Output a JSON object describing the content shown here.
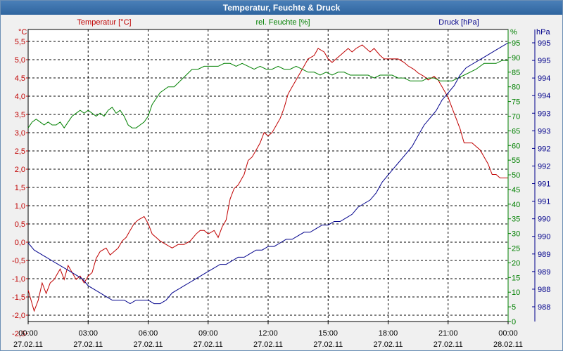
{
  "window": {
    "title": "Temperatur, Feuchte & Druck"
  },
  "colors": {
    "temp": "#c00000",
    "hum": "#008000",
    "press": "#00008b",
    "grid": "#000000"
  },
  "chart_data": {
    "type": "line",
    "title": "Temperatur, Feuchte & Druck",
    "legend": {
      "temp": "Temperatur [°C]",
      "hum": "rel. Feuchte [%]",
      "press": "Druck [hPa]"
    },
    "axes": {
      "temp": {
        "unit": "°C",
        "ylim": [
          -2.5,
          5.5
        ],
        "ticks": [
          "5,5",
          "5,0",
          "4,5",
          "4,0",
          "3,5",
          "3,0",
          "2,5",
          "2,0",
          "1,5",
          "1,0",
          "0,5",
          "0,0",
          "-0,5",
          "-1,0",
          "-1,5",
          "-2,0",
          "-2,5"
        ]
      },
      "hum": {
        "unit": "%",
        "ylim": [
          0,
          95
        ],
        "ticks": [
          "95",
          "90",
          "85",
          "80",
          "75",
          "70",
          "65",
          "60",
          "55",
          "50",
          "45",
          "40",
          "35",
          "30",
          "25",
          "20",
          "15",
          "10",
          "5",
          "0"
        ]
      },
      "press": {
        "unit": "hPa",
        "ylim": [
          987.4,
          995.2
        ],
        "ticks": [
          "995",
          "995",
          "994",
          "994",
          "993",
          "993",
          "992",
          "992",
          "991",
          "991",
          "990",
          "990",
          "989",
          "989",
          "988",
          "988"
        ]
      }
    },
    "x": {
      "range_hours": [
        0,
        24
      ],
      "times": [
        "00:00",
        "03:00",
        "06:00",
        "09:00",
        "12:00",
        "15:00",
        "18:00",
        "21:00",
        "00:00"
      ],
      "dates": [
        "27.02.11",
        "27.02.11",
        "27.02.11",
        "27.02.11",
        "27.02.11",
        "27.02.11",
        "27.02.11",
        "27.02.11",
        "28.02.11"
      ]
    },
    "series": [
      {
        "name": "Temperatur [°C]",
        "key": "temp",
        "points": [
          [
            0,
            -1.6
          ],
          [
            0.3,
            -2.2
          ],
          [
            0.5,
            -1.9
          ],
          [
            0.7,
            -1.4
          ],
          [
            0.9,
            -1.7
          ],
          [
            1.1,
            -1.4
          ],
          [
            1.3,
            -1.3
          ],
          [
            1.6,
            -1.0
          ],
          [
            1.8,
            -1.3
          ],
          [
            2.0,
            -0.9
          ],
          [
            2.2,
            -1.1
          ],
          [
            2.4,
            -1.3
          ],
          [
            2.6,
            -1.2
          ],
          [
            2.8,
            -1.4
          ],
          [
            3.0,
            -1.2
          ],
          [
            3.2,
            -1.1
          ],
          [
            3.4,
            -0.7
          ],
          [
            3.6,
            -0.5
          ],
          [
            3.9,
            -0.4
          ],
          [
            4.1,
            -0.6
          ],
          [
            4.3,
            -0.5
          ],
          [
            4.5,
            -0.4
          ],
          [
            4.7,
            -0.2
          ],
          [
            4.9,
            -0.1
          ],
          [
            5.1,
            0.1
          ],
          [
            5.3,
            0.3
          ],
          [
            5.5,
            0.4
          ],
          [
            5.8,
            0.5
          ],
          [
            6.0,
            0.3
          ],
          [
            6.2,
            0.0
          ],
          [
            6.4,
            -0.1
          ],
          [
            6.6,
            -0.2
          ],
          [
            6.9,
            -0.3
          ],
          [
            7.2,
            -0.4
          ],
          [
            7.5,
            -0.3
          ],
          [
            7.8,
            -0.3
          ],
          [
            8.1,
            -0.2
          ],
          [
            8.4,
            0.0
          ],
          [
            8.6,
            0.1
          ],
          [
            8.8,
            0.1
          ],
          [
            9.0,
            0.0
          ],
          [
            9.3,
            0.1
          ],
          [
            9.5,
            -0.1
          ],
          [
            9.7,
            0.2
          ],
          [
            9.9,
            0.4
          ],
          [
            10.1,
            1.0
          ],
          [
            10.3,
            1.3
          ],
          [
            10.5,
            1.4
          ],
          [
            10.8,
            1.7
          ],
          [
            11.0,
            2.1
          ],
          [
            11.2,
            2.2
          ],
          [
            11.4,
            2.4
          ],
          [
            11.6,
            2.6
          ],
          [
            11.8,
            2.9
          ],
          [
            12.0,
            2.8
          ],
          [
            12.2,
            2.9
          ],
          [
            12.4,
            3.1
          ],
          [
            12.6,
            3.3
          ],
          [
            12.8,
            3.6
          ],
          [
            13.0,
            4.0
          ],
          [
            13.2,
            4.2
          ],
          [
            13.4,
            4.4
          ],
          [
            13.6,
            4.6
          ],
          [
            13.8,
            4.8
          ],
          [
            14.0,
            5.0
          ],
          [
            14.3,
            5.1
          ],
          [
            14.5,
            5.3
          ],
          [
            14.8,
            5.2
          ],
          [
            15.0,
            5.0
          ],
          [
            15.2,
            4.9
          ],
          [
            15.4,
            5.0
          ],
          [
            15.6,
            5.1
          ],
          [
            15.8,
            5.2
          ],
          [
            16.0,
            5.3
          ],
          [
            16.2,
            5.2
          ],
          [
            16.4,
            5.3
          ],
          [
            16.7,
            5.4
          ],
          [
            16.9,
            5.3
          ],
          [
            17.1,
            5.2
          ],
          [
            17.3,
            5.3
          ],
          [
            17.6,
            5.1
          ],
          [
            17.8,
            5.0
          ],
          [
            18.0,
            5.0
          ],
          [
            18.3,
            5.0
          ],
          [
            18.5,
            5.0
          ],
          [
            18.8,
            4.9
          ],
          [
            19.0,
            4.8
          ],
          [
            19.3,
            4.7
          ],
          [
            19.5,
            4.6
          ],
          [
            19.8,
            4.5
          ],
          [
            20.0,
            4.4
          ],
          [
            20.3,
            4.5
          ],
          [
            20.5,
            4.4
          ],
          [
            20.7,
            4.2
          ],
          [
            21.0,
            3.9
          ],
          [
            21.2,
            3.6
          ],
          [
            21.4,
            3.3
          ],
          [
            21.6,
            3.0
          ],
          [
            21.8,
            2.6
          ],
          [
            22.0,
            2.6
          ],
          [
            22.2,
            2.6
          ],
          [
            22.4,
            2.5
          ],
          [
            22.6,
            2.4
          ],
          [
            22.8,
            2.2
          ],
          [
            23.0,
            2.0
          ],
          [
            23.2,
            1.7
          ],
          [
            23.4,
            1.7
          ],
          [
            23.6,
            1.6
          ],
          [
            23.8,
            1.6
          ],
          [
            24.0,
            1.6
          ]
        ]
      },
      {
        "name": "rel. Feuchte [%]",
        "key": "hum",
        "points": [
          [
            0,
            66
          ],
          [
            0.2,
            68
          ],
          [
            0.4,
            69
          ],
          [
            0.6,
            68
          ],
          [
            0.8,
            67
          ],
          [
            1.0,
            68
          ],
          [
            1.2,
            67
          ],
          [
            1.4,
            67
          ],
          [
            1.6,
            68
          ],
          [
            1.8,
            66
          ],
          [
            2.0,
            68
          ],
          [
            2.2,
            70
          ],
          [
            2.4,
            71
          ],
          [
            2.6,
            72
          ],
          [
            2.8,
            71
          ],
          [
            3.0,
            72
          ],
          [
            3.2,
            71
          ],
          [
            3.4,
            70
          ],
          [
            3.6,
            71
          ],
          [
            3.8,
            70
          ],
          [
            4.0,
            72
          ],
          [
            4.2,
            73
          ],
          [
            4.4,
            71
          ],
          [
            4.6,
            72
          ],
          [
            4.8,
            70
          ],
          [
            5.0,
            67
          ],
          [
            5.2,
            66
          ],
          [
            5.4,
            66
          ],
          [
            5.6,
            67
          ],
          [
            5.8,
            68
          ],
          [
            6.0,
            70
          ],
          [
            6.2,
            74
          ],
          [
            6.4,
            76
          ],
          [
            6.6,
            78
          ],
          [
            6.8,
            79
          ],
          [
            7.0,
            80
          ],
          [
            7.3,
            80
          ],
          [
            7.6,
            82
          ],
          [
            7.9,
            84
          ],
          [
            8.2,
            86
          ],
          [
            8.5,
            86
          ],
          [
            8.8,
            87
          ],
          [
            9.1,
            87
          ],
          [
            9.5,
            87
          ],
          [
            9.8,
            88
          ],
          [
            10.1,
            88
          ],
          [
            10.4,
            87
          ],
          [
            10.7,
            88
          ],
          [
            11.0,
            87
          ],
          [
            11.3,
            86
          ],
          [
            11.6,
            87
          ],
          [
            11.9,
            86
          ],
          [
            12.2,
            86
          ],
          [
            12.5,
            87
          ],
          [
            12.8,
            86
          ],
          [
            13.1,
            86
          ],
          [
            13.4,
            87
          ],
          [
            13.7,
            86
          ],
          [
            14.0,
            85
          ],
          [
            14.3,
            85
          ],
          [
            14.6,
            84
          ],
          [
            14.9,
            85
          ],
          [
            15.2,
            84
          ],
          [
            15.5,
            85
          ],
          [
            15.8,
            85
          ],
          [
            16.1,
            84
          ],
          [
            16.4,
            84
          ],
          [
            16.7,
            84
          ],
          [
            17.0,
            84
          ],
          [
            17.3,
            83
          ],
          [
            17.6,
            84
          ],
          [
            17.9,
            84
          ],
          [
            18.2,
            84
          ],
          [
            18.5,
            83
          ],
          [
            18.8,
            83
          ],
          [
            19.1,
            82
          ],
          [
            19.4,
            82
          ],
          [
            19.7,
            82
          ],
          [
            20.0,
            83
          ],
          [
            20.3,
            83
          ],
          [
            20.6,
            82
          ],
          [
            20.9,
            82
          ],
          [
            21.2,
            82
          ],
          [
            21.5,
            83
          ],
          [
            21.8,
            84
          ],
          [
            22.1,
            85
          ],
          [
            22.4,
            86
          ],
          [
            22.6,
            87
          ],
          [
            22.8,
            88
          ],
          [
            23.1,
            88
          ],
          [
            23.4,
            88
          ],
          [
            23.7,
            89
          ],
          [
            24.0,
            89
          ]
        ]
      },
      {
        "name": "Druck [hPa]",
        "key": "press",
        "points": [
          [
            0,
            989.6
          ],
          [
            0.3,
            989.4
          ],
          [
            0.6,
            989.3
          ],
          [
            0.9,
            989.2
          ],
          [
            1.2,
            989.1
          ],
          [
            1.5,
            989.0
          ],
          [
            1.8,
            988.9
          ],
          [
            2.1,
            988.8
          ],
          [
            2.4,
            988.7
          ],
          [
            2.7,
            988.6
          ],
          [
            3.0,
            988.4
          ],
          [
            3.3,
            988.3
          ],
          [
            3.6,
            988.2
          ],
          [
            3.9,
            988.1
          ],
          [
            4.2,
            988.0
          ],
          [
            4.5,
            988.0
          ],
          [
            4.8,
            988.0
          ],
          [
            5.1,
            987.9
          ],
          [
            5.4,
            988.0
          ],
          [
            5.7,
            988.0
          ],
          [
            6.0,
            988.0
          ],
          [
            6.3,
            987.9
          ],
          [
            6.6,
            987.9
          ],
          [
            6.9,
            988.0
          ],
          [
            7.2,
            988.2
          ],
          [
            7.5,
            988.3
          ],
          [
            7.8,
            988.4
          ],
          [
            8.1,
            988.5
          ],
          [
            8.4,
            988.6
          ],
          [
            8.7,
            988.7
          ],
          [
            9.0,
            988.8
          ],
          [
            9.3,
            988.9
          ],
          [
            9.6,
            989.0
          ],
          [
            9.9,
            989.0
          ],
          [
            10.2,
            989.1
          ],
          [
            10.5,
            989.2
          ],
          [
            10.8,
            989.2
          ],
          [
            11.1,
            989.3
          ],
          [
            11.4,
            989.4
          ],
          [
            11.7,
            989.4
          ],
          [
            12.0,
            989.5
          ],
          [
            12.3,
            989.5
          ],
          [
            12.6,
            989.6
          ],
          [
            12.9,
            989.7
          ],
          [
            13.2,
            989.7
          ],
          [
            13.5,
            989.8
          ],
          [
            13.8,
            989.9
          ],
          [
            14.1,
            989.9
          ],
          [
            14.4,
            990.0
          ],
          [
            14.7,
            990.1
          ],
          [
            15.0,
            990.1
          ],
          [
            15.3,
            990.2
          ],
          [
            15.6,
            990.2
          ],
          [
            15.9,
            990.3
          ],
          [
            16.2,
            990.4
          ],
          [
            16.5,
            990.6
          ],
          [
            16.8,
            990.7
          ],
          [
            17.1,
            990.8
          ],
          [
            17.4,
            991.0
          ],
          [
            17.7,
            991.3
          ],
          [
            18.0,
            991.5
          ],
          [
            18.3,
            991.7
          ],
          [
            18.6,
            991.9
          ],
          [
            18.9,
            992.1
          ],
          [
            19.2,
            992.3
          ],
          [
            19.5,
            992.6
          ],
          [
            19.8,
            992.9
          ],
          [
            20.1,
            993.1
          ],
          [
            20.4,
            993.3
          ],
          [
            20.7,
            993.6
          ],
          [
            21.0,
            993.8
          ],
          [
            21.3,
            994.0
          ],
          [
            21.6,
            994.3
          ],
          [
            21.9,
            994.5
          ],
          [
            22.2,
            994.6
          ],
          [
            22.5,
            994.7
          ],
          [
            22.8,
            994.8
          ],
          [
            23.1,
            994.9
          ],
          [
            23.4,
            995.0
          ],
          [
            23.7,
            995.1
          ],
          [
            24.0,
            995.2
          ]
        ]
      }
    ]
  }
}
